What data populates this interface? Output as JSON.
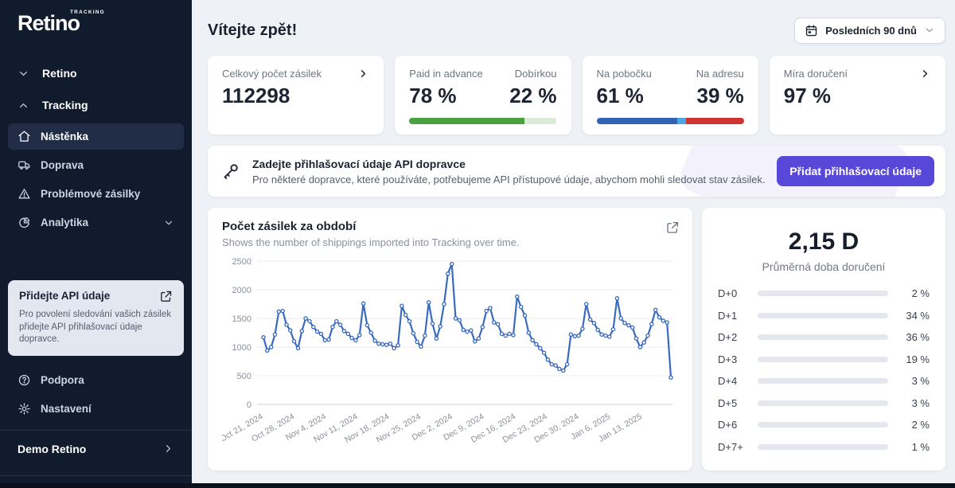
{
  "sidebar": {
    "logo": {
      "brand": "Retino",
      "tag": "TRACKING"
    },
    "groups": [
      {
        "label": "Retino"
      },
      {
        "label": "Tracking"
      }
    ],
    "items": [
      {
        "label": "Nástěnka",
        "icon": "home-icon",
        "active": true
      },
      {
        "label": "Doprava",
        "icon": "truck-icon",
        "active": false
      },
      {
        "label": "Problémové zásilky",
        "icon": "warning-triangle-icon",
        "active": false
      },
      {
        "label": "Analytika",
        "icon": "pie-chart-icon",
        "active": false
      }
    ],
    "promo": {
      "title": "Přidejte API údaje",
      "description": "Pro povolení sledování vašich zásilek přidejte API přihlašovací údaje dopravce."
    },
    "footer_items": [
      {
        "label": "Podpora",
        "icon": "question-circle-icon"
      },
      {
        "label": "Nastavení",
        "icon": "gear-icon"
      }
    ],
    "account": {
      "label": "Demo Retino"
    }
  },
  "header": {
    "title": "Vítejte zpět!",
    "date_range": {
      "label": "Posledních 90 dnů",
      "icon": "calendar-icon"
    }
  },
  "stats": {
    "total": {
      "label": "Celkový počet zásilek",
      "value": "112298"
    },
    "payment": {
      "left_label": "Paid in advance",
      "left_value": "78 %",
      "right_label": "Dobírkou",
      "right_value": "22 %",
      "left_pct": 78,
      "right_pct": 22,
      "fill_color": "#4ba03f",
      "track_color": "#dcead8"
    },
    "destination": {
      "left_label": "Na pobočku",
      "left_value": "61 %",
      "right_label": "Na adresu",
      "right_value": "39 %",
      "segments": [
        {
          "pct": 55,
          "color": "#3363b5"
        },
        {
          "pct": 6,
          "color": "#49a7e8"
        },
        {
          "pct": 39,
          "color": "#cf3434"
        }
      ]
    },
    "delivery_rate": {
      "label": "Míra doručení",
      "value": "97 %"
    }
  },
  "banner": {
    "title": "Zadejte přihlašovací údaje API dopravce",
    "description": "Pro některé dopravce, které používáte, potřebujeme API přístupové údaje, abychom mohli sledovat stav zásilek.",
    "button": "Přidat přihlašovací údaje",
    "button_color": "#5848d9"
  },
  "chart_card": {
    "title": "Počet zásilek za období",
    "subtitle": "Shows the number of shippings imported into Tracking over time."
  },
  "chart_data": {
    "type": "line",
    "title": "Počet zásilek za období",
    "xlabel": "",
    "ylabel": "",
    "ylim": [
      0,
      2500
    ],
    "yticks": [
      0,
      500,
      1000,
      1500,
      2000,
      2500
    ],
    "grid": true,
    "point_markers": true,
    "line_color": "#3a6bc0",
    "x_tick_labels": [
      "Oct 21, 2024",
      "Oct 28, 2024",
      "Nov 4, 2024",
      "Nov 11, 2024",
      "Nov 18, 2024",
      "Nov 25, 2024",
      "Dec 2, 2024",
      "Dec 9, 2024",
      "Dec 16, 2024",
      "Dec 23, 2024",
      "Dec 30, 2024",
      "Jan 6, 2025",
      "Jan 13, 2025"
    ],
    "series": [
      {
        "name": "Počet zásilek",
        "values": [
          1170,
          940,
          1000,
          1220,
          1620,
          1630,
          1390,
          1290,
          1100,
          980,
          1280,
          1500,
          1450,
          1350,
          1270,
          1230,
          1120,
          1130,
          1350,
          1450,
          1390,
          1280,
          1230,
          1160,
          1120,
          1210,
          1760,
          1380,
          1250,
          1110,
          1060,
          1050,
          1040,
          1060,
          980,
          1030,
          1720,
          1560,
          1450,
          1240,
          1090,
          1010,
          1200,
          1780,
          1410,
          1150,
          1360,
          1750,
          2280,
          2450,
          1500,
          1470,
          1300,
          1270,
          1290,
          1100,
          1150,
          1350,
          1630,
          1680,
          1430,
          1400,
          1230,
          1200,
          1230,
          1210,
          1880,
          1700,
          1550,
          1250,
          1120,
          1050,
          980,
          900,
          780,
          700,
          680,
          620,
          590,
          700,
          1220,
          1190,
          1200,
          1320,
          1750,
          1480,
          1420,
          1300,
          1220,
          1200,
          1180,
          1310,
          1850,
          1500,
          1420,
          1380,
          1340,
          1150,
          1000,
          1080,
          1200,
          1400,
          1650,
          1520,
          1460,
          1430,
          470
        ]
      }
    ]
  },
  "delivery_panel": {
    "value": "2,15 D",
    "subtitle": "Průměrná doba doručení",
    "bar_color": "#3767c8",
    "rows": [
      {
        "label": "D+0",
        "pct": 2,
        "value": "2 %"
      },
      {
        "label": "D+1",
        "pct": 34,
        "value": "34 %"
      },
      {
        "label": "D+2",
        "pct": 36,
        "value": "36 %"
      },
      {
        "label": "D+3",
        "pct": 19,
        "value": "19 %"
      },
      {
        "label": "D+4",
        "pct": 3,
        "value": "3 %"
      },
      {
        "label": "D+5",
        "pct": 3,
        "value": "3 %"
      },
      {
        "label": "D+6",
        "pct": 2,
        "value": "2 %"
      },
      {
        "label": "D+7+",
        "pct": 1,
        "value": "1 %"
      }
    ]
  }
}
